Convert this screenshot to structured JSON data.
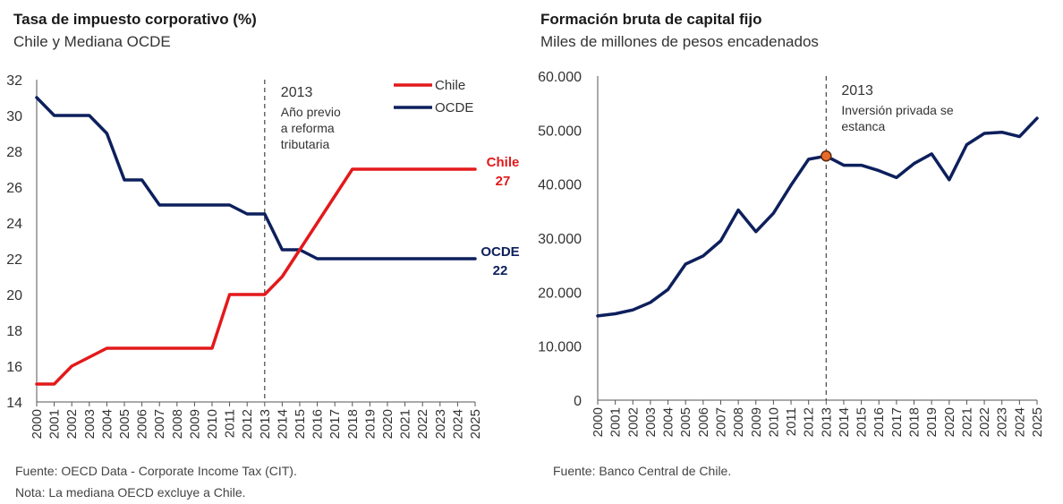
{
  "colors": {
    "chile": "#e3191b",
    "ocde": "#0d1f5c",
    "axis": "#555555",
    "text": "#333333",
    "marker": "#e86a2a"
  },
  "chart_data": [
    {
      "type": "line",
      "title": "Tasa de impuesto corporativo (%)",
      "subtitle": "Chile y Mediana OCDE",
      "x": [
        "2000",
        "2001",
        "2002",
        "2003",
        "2004",
        "2005",
        "2006",
        "2007",
        "2008",
        "2009",
        "2010",
        "2011",
        "2012",
        "2013",
        "2014",
        "2015",
        "2016",
        "2017",
        "2018",
        "2019",
        "2020",
        "2021",
        "2022",
        "2023",
        "2024",
        "2025"
      ],
      "ylim": [
        14,
        32
      ],
      "yticks": [
        "14",
        "16",
        "18",
        "20",
        "22",
        "24",
        "26",
        "28",
        "30",
        "32"
      ],
      "series": [
        {
          "name": "Chile",
          "color": "#e3191b",
          "values": [
            15,
            15,
            16,
            16.5,
            17,
            17,
            17,
            17,
            17,
            17,
            17,
            20,
            20,
            20,
            21,
            22.5,
            24,
            25.5,
            27,
            27,
            27,
            27,
            27,
            27,
            27,
            27
          ]
        },
        {
          "name": "OCDE",
          "color": "#0d1f5c",
          "values": [
            31,
            30,
            30,
            30,
            29,
            26.4,
            26.4,
            25,
            25,
            25,
            25,
            25,
            24.5,
            24.5,
            22.5,
            22.5,
            22,
            22,
            22,
            22,
            22,
            22,
            22,
            22,
            22,
            22
          ]
        }
      ],
      "legend": [
        "Chile",
        "OCDE"
      ],
      "end_labels": [
        {
          "name": "Chile",
          "value": "27"
        },
        {
          "name": "OCDE",
          "value": "22"
        }
      ],
      "annotation": {
        "year_label": "2013",
        "lines": [
          "Año previo",
          "a reforma",
          "tributaria"
        ],
        "x": "2013"
      },
      "notes": [
        "Fuente: OECD Data - Corporate Income Tax (CIT).",
        "Nota: La mediana OECD excluye a Chile."
      ]
    },
    {
      "type": "line",
      "title": "Formación bruta de capital fijo",
      "subtitle": "Miles de millones de pesos encadenados",
      "x": [
        "2000",
        "2001",
        "2002",
        "2003",
        "2004",
        "2005",
        "2006",
        "2007",
        "2008",
        "2009",
        "2010",
        "2011",
        "2012",
        "2013",
        "2014",
        "2015",
        "2016",
        "2017",
        "2018",
        "2019",
        "2020",
        "2021",
        "2022",
        "2023",
        "2024",
        "2025"
      ],
      "ylim": [
        0,
        60000
      ],
      "yticks": [
        "0",
        "10.000",
        "20.000",
        "30.000",
        "40.000",
        "50.000",
        "60.000"
      ],
      "series": [
        {
          "color": "#0d1f5c",
          "values": [
            15600,
            16000,
            16700,
            18100,
            20500,
            25200,
            26700,
            29500,
            35200,
            31200,
            34600,
            39800,
            44600,
            45200,
            43500,
            43500,
            42500,
            41200,
            43800,
            45600,
            40800,
            47300,
            49400,
            49600,
            48800,
            52200
          ]
        }
      ],
      "annotation": {
        "year_label": "2013",
        "lines": [
          "Inversión privada se",
          "estanca"
        ],
        "x": "2013"
      },
      "notes": [
        "Fuente: Banco Central de Chile."
      ]
    }
  ]
}
